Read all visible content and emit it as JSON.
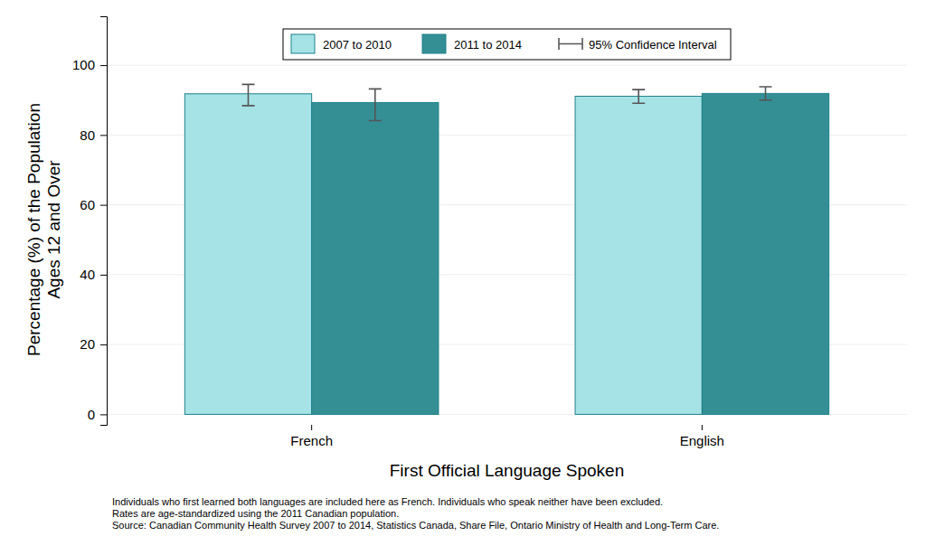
{
  "chart_data": {
    "type": "bar",
    "categories": [
      "French",
      "English"
    ],
    "series": [
      {
        "name": "2007 to 2010",
        "color": "#a6e3e6",
        "values": [
          91.8,
          91.1
        ],
        "ci_low": [
          88.4,
          89.1
        ],
        "ci_high": [
          94.5,
          93.0
        ]
      },
      {
        "name": "2011 to 2014",
        "color": "#348f94",
        "values": [
          89.3,
          91.9
        ],
        "ci_low": [
          84.1,
          90.0
        ],
        "ci_high": [
          93.2,
          93.8
        ]
      }
    ],
    "ci_label": "95% Confidence Interval",
    "x_label": "First Official Language Spoken",
    "y_label": [
      "Percentage (%) of the Population",
      "Ages 12 and Over"
    ],
    "ylim": [
      -3,
      114
    ],
    "yticks": [
      0,
      20,
      40,
      60,
      80,
      100
    ],
    "grid": true,
    "legend": "top",
    "notes": [
      "Individuals who first learned both languages are included here as French.  Individuals who speak neither have been excluded.",
      "Rates are age-standardized using the 2011 Canadian population.",
      "Source: Canadian Community Health Survey 2007 to 2014, Statistics Canada, Share File, Ontario Ministry of Health and Long-Term Care."
    ]
  }
}
